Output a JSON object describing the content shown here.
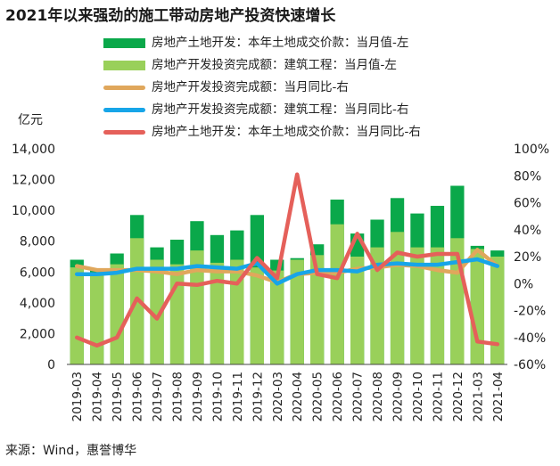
{
  "title": "2021年以来强劲的施工带动房地产投资快速增长",
  "source": "来源：Wind，惠誉博华",
  "colors": {
    "land_bar": "#0aa84a",
    "construction_bar": "#99d05a",
    "invest_yoy": "#e0a75c",
    "construction_yoy": "#17a5e8",
    "land_yoy": "#e5605a"
  },
  "chart_data": {
    "type": "bar",
    "title": "2021年以来强劲的施工带动房地产投资快速增长",
    "y_left_unit": "亿元",
    "ylim_left": [
      0,
      14000
    ],
    "ylim_right": [
      -60,
      100
    ],
    "y_left_ticks": [
      "0",
      "2,000",
      "4,000",
      "6,000",
      "8,000",
      "10,000",
      "12,000",
      "14,000"
    ],
    "y_right_ticks": [
      "-60%",
      "-40%",
      "-20%",
      "0%",
      "20%",
      "40%",
      "60%",
      "80%",
      "100%"
    ],
    "categories": [
      "2019-03",
      "2019-04",
      "2019-05",
      "2019-06",
      "2019-07",
      "2019-08",
      "2019-09",
      "2019-10",
      "2019-11",
      "2019-12",
      "2020-03",
      "2020-04",
      "2020-05",
      "2020-06",
      "2020-07",
      "2020-08",
      "2020-09",
      "2020-10",
      "2020-11",
      "2020-12",
      "2021-03",
      "2021-04"
    ],
    "series": [
      {
        "name": "房地产土地开发：本年土地成交价款：当月值-左",
        "type": "bar",
        "axis": "left",
        "values": [
          6800,
          6200,
          7200,
          9700,
          7600,
          8100,
          9300,
          8400,
          8700,
          9700,
          6800,
          6900,
          7800,
          10700,
          8500,
          9400,
          10800,
          9800,
          10300,
          11600,
          7700,
          7400
        ]
      },
      {
        "name": "房地产开发投资完成额：建筑工程：当月值-左",
        "type": "bar",
        "axis": "left",
        "values": [
          6300,
          5900,
          6500,
          8200,
          6800,
          6500,
          7400,
          6600,
          6800,
          6300,
          6100,
          6800,
          7100,
          9100,
          7000,
          7600,
          8600,
          7600,
          7600,
          8200,
          7500,
          7000
        ]
      },
      {
        "name": "房地产开发投资完成额：当月同比-右",
        "type": "line",
        "axis": "right",
        "values": [
          13,
          10,
          10,
          10,
          9,
          7,
          10,
          9,
          9,
          6,
          1,
          7,
          8,
          8,
          11,
          12,
          14,
          13,
          10,
          8,
          25,
          13
        ]
      },
      {
        "name": "房地产开发投资完成额：建筑工程：当月同比-右",
        "type": "line",
        "axis": "right",
        "values": [
          7,
          7,
          8,
          11,
          11,
          11,
          13,
          12,
          11,
          15,
          0,
          7,
          10,
          10,
          9,
          14,
          15,
          14,
          14,
          16,
          18,
          13
        ]
      },
      {
        "name": "房地产土地开发：本年土地成交价款：当月同比-右",
        "type": "line",
        "axis": "right",
        "values": [
          -40,
          -46,
          -40,
          -11,
          -26,
          0,
          -1,
          2,
          0,
          19,
          4,
          81,
          7,
          4,
          37,
          10,
          23,
          20,
          22,
          22,
          -43,
          -45
        ]
      }
    ],
    "legend_position": "top",
    "grid": false
  }
}
